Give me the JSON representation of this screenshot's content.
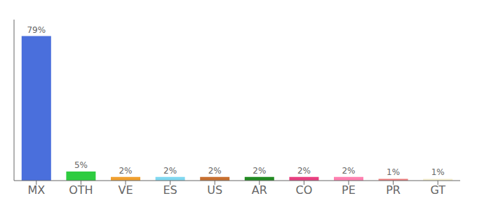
{
  "chart_data": {
    "type": "bar",
    "categories": [
      "MX",
      "OTH",
      "VE",
      "ES",
      "US",
      "AR",
      "CO",
      "PE",
      "PR",
      "GT"
    ],
    "values": [
      79,
      5,
      2,
      2,
      2,
      2,
      2,
      2,
      1,
      1
    ],
    "value_labels": [
      "79%",
      "5%",
      "2%",
      "2%",
      "2%",
      "2%",
      "2%",
      "2%",
      "1%",
      "1%"
    ],
    "colors": [
      "#4a6fdc",
      "#2ecc40",
      "#f0a030",
      "#80d8f0",
      "#c87030",
      "#228b22",
      "#e84080",
      "#ff80b0",
      "#f08080",
      "#f5f0d0"
    ],
    "ylim": [
      0,
      88
    ],
    "data_labels": true,
    "tick_labels": "x",
    "grid": false
  }
}
